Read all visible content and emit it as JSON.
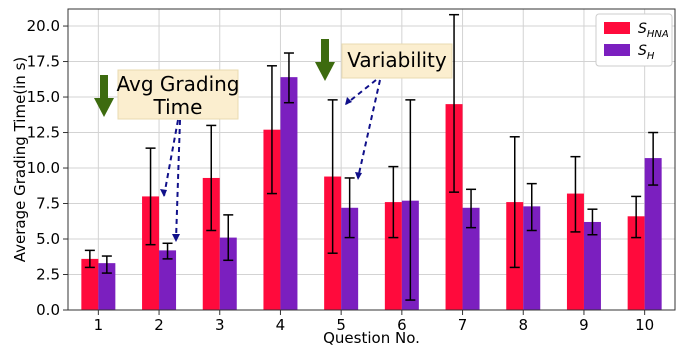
{
  "colors": {
    "series1": "#ff0a3c",
    "series2": "#7b1fbf",
    "grid": "#d3d3d3",
    "errorbar": "#000000",
    "callout_fill": "#fbeecf",
    "callout_border": "#eadbb0",
    "arrow_fill": "#3d6b0f",
    "annotation_line": "#10108a"
  },
  "annotations": {
    "avg_label_line1": "Avg Grading",
    "avg_label_line2": "Time",
    "variability_label": "Variability"
  },
  "legend": {
    "series1_main": "S",
    "series1_sub": "HNA",
    "series2_main": "S",
    "series2_sub": "H"
  },
  "chart_data": {
    "type": "bar",
    "categories": [
      "1",
      "2",
      "3",
      "4",
      "5",
      "6",
      "7",
      "8",
      "9",
      "10"
    ],
    "xlabel": "Question No.",
    "ylabel": "Average Grading Time(in s)",
    "ylim": [
      0,
      21.2
    ],
    "yticks": [
      "0.0",
      "2.5",
      "5.0",
      "7.5",
      "10.0",
      "12.5",
      "15.0",
      "17.5",
      "20.0"
    ],
    "grid": true,
    "legend_position": "top-right",
    "series": [
      {
        "name": "S_HNA",
        "values": [
          3.6,
          8.0,
          9.3,
          12.7,
          9.4,
          7.6,
          14.5,
          7.6,
          8.2,
          6.6
        ],
        "err_low": [
          3.0,
          4.6,
          5.6,
          8.2,
          4.0,
          5.1,
          8.3,
          3.0,
          5.5,
          5.1
        ],
        "err_high": [
          4.2,
          11.4,
          13.0,
          17.2,
          14.8,
          10.1,
          20.8,
          12.2,
          10.8,
          8.0
        ]
      },
      {
        "name": "S_H",
        "values": [
          3.3,
          4.2,
          5.1,
          16.4,
          7.2,
          7.7,
          7.2,
          7.3,
          6.2,
          10.7
        ],
        "err_low": [
          2.6,
          3.6,
          3.5,
          14.6,
          5.1,
          0.7,
          5.8,
          5.6,
          5.3,
          8.8
        ],
        "err_high": [
          3.8,
          4.7,
          6.7,
          18.1,
          9.3,
          14.8,
          8.5,
          8.9,
          7.1,
          12.5
        ]
      }
    ]
  }
}
